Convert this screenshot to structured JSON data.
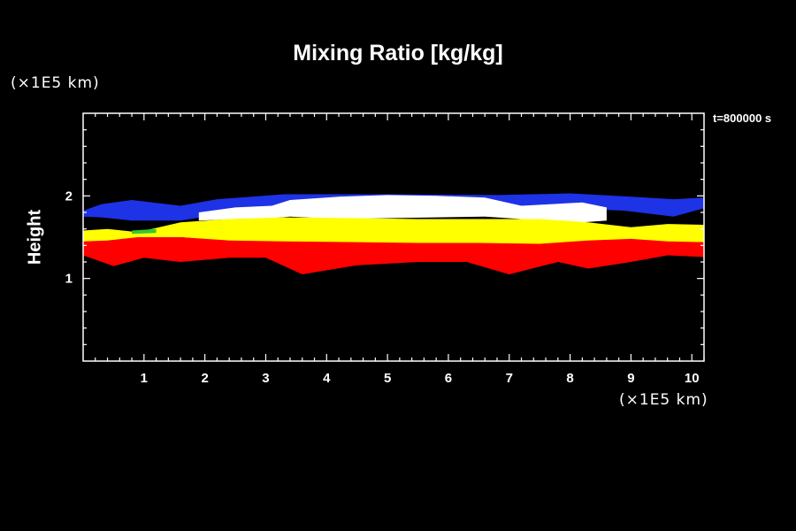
{
  "chart_data": {
    "type": "heatmap",
    "title": "Mixing Ratio [kg/kg]",
    "ylabel": "Height",
    "xlabel": "",
    "x_unit": "(×1E5 km)",
    "y_unit": "(×1E5 km)",
    "time_label": "t=800000 s",
    "xlim": [
      0,
      10.2
    ],
    "ylim": [
      0,
      3
    ],
    "xticks": [
      "1",
      "2",
      "3",
      "4",
      "5",
      "6",
      "7",
      "8",
      "9",
      "10"
    ],
    "yticks": [
      "1",
      "2"
    ],
    "colors": {
      "background": "#000000",
      "frame": "#ffffff",
      "blue": "#1e32e6",
      "white": "#ffffff",
      "yellow": "#ffff00",
      "red": "#ff0000",
      "green": "#32c832"
    },
    "regions": [
      {
        "name": "blue-layer",
        "color": "#1e32e6",
        "top": [
          [
            0.0,
            1.82
          ],
          [
            0.3,
            1.9
          ],
          [
            0.8,
            1.95
          ],
          [
            1.6,
            1.88
          ],
          [
            2.2,
            1.96
          ],
          [
            3.3,
            2.02
          ],
          [
            5,
            2.02
          ],
          [
            6.8,
            2.01
          ],
          [
            8,
            2.03
          ],
          [
            9,
            1.99
          ],
          [
            9.7,
            1.96
          ],
          [
            10.2,
            1.98
          ]
        ],
        "bottom": [
          [
            10.2,
            1.85
          ],
          [
            9.7,
            1.75
          ],
          [
            8.9,
            1.82
          ],
          [
            8,
            1.85
          ],
          [
            6.8,
            1.85
          ],
          [
            5,
            1.8
          ],
          [
            3.3,
            1.78
          ],
          [
            2.2,
            1.77
          ],
          [
            1.6,
            1.7
          ],
          [
            0.8,
            1.7
          ],
          [
            0.3,
            1.74
          ],
          [
            0.0,
            1.75
          ]
        ]
      },
      {
        "name": "white-layer",
        "color": "#ffffff",
        "top": [
          [
            1.9,
            1.8
          ],
          [
            2.5,
            1.86
          ],
          [
            3.1,
            1.88
          ],
          [
            3.4,
            1.95
          ],
          [
            4.2,
            1.99
          ],
          [
            5,
            2.01
          ],
          [
            5.8,
            2.0
          ],
          [
            6.6,
            1.98
          ],
          [
            7.2,
            1.88
          ],
          [
            8.2,
            1.92
          ],
          [
            8.6,
            1.86
          ]
        ],
        "bottom": [
          [
            8.6,
            1.7
          ],
          [
            8.2,
            1.68
          ],
          [
            7.2,
            1.72
          ],
          [
            6.6,
            1.75
          ],
          [
            5.8,
            1.74
          ],
          [
            5,
            1.73
          ],
          [
            4.2,
            1.72
          ],
          [
            3.4,
            1.75
          ],
          [
            3.1,
            1.73
          ],
          [
            2.5,
            1.72
          ],
          [
            1.9,
            1.7
          ]
        ]
      },
      {
        "name": "yellow-layer",
        "color": "#ffff00",
        "top": [
          [
            0,
            1.58
          ],
          [
            0.4,
            1.6
          ],
          [
            0.9,
            1.56
          ],
          [
            1.6,
            1.68
          ],
          [
            2.4,
            1.72
          ],
          [
            3.3,
            1.74
          ],
          [
            4.5,
            1.73
          ],
          [
            5.5,
            1.72
          ],
          [
            6.5,
            1.72
          ],
          [
            7.5,
            1.72
          ],
          [
            8.3,
            1.68
          ],
          [
            9,
            1.62
          ],
          [
            9.6,
            1.66
          ],
          [
            10.2,
            1.65
          ]
        ],
        "bottom": [
          [
            10.2,
            1.44
          ],
          [
            9.6,
            1.42
          ],
          [
            9,
            1.46
          ],
          [
            8.3,
            1.44
          ],
          [
            7.5,
            1.4
          ],
          [
            6.5,
            1.42
          ],
          [
            5.5,
            1.42
          ],
          [
            4.5,
            1.43
          ],
          [
            3.3,
            1.44
          ],
          [
            2.4,
            1.45
          ],
          [
            1.6,
            1.5
          ],
          [
            0.9,
            1.48
          ],
          [
            0.4,
            1.45
          ],
          [
            0,
            1.42
          ]
        ]
      },
      {
        "name": "red-layer",
        "color": "#ff0000",
        "top": [
          [
            0,
            1.45
          ],
          [
            0.4,
            1.46
          ],
          [
            0.9,
            1.5
          ],
          [
            1.6,
            1.5
          ],
          [
            2.4,
            1.46
          ],
          [
            3.3,
            1.45
          ],
          [
            4.5,
            1.44
          ],
          [
            5.5,
            1.43
          ],
          [
            6.5,
            1.43
          ],
          [
            7.5,
            1.42
          ],
          [
            8.3,
            1.46
          ],
          [
            9,
            1.48
          ],
          [
            9.6,
            1.45
          ],
          [
            10.2,
            1.44
          ]
        ],
        "bottom": [
          [
            10.2,
            1.26
          ],
          [
            9.6,
            1.28
          ],
          [
            9,
            1.2
          ],
          [
            8.3,
            1.12
          ],
          [
            7.8,
            1.2
          ],
          [
            7,
            1.05
          ],
          [
            6.3,
            1.2
          ],
          [
            5.5,
            1.2
          ],
          [
            4.5,
            1.16
          ],
          [
            3.6,
            1.05
          ],
          [
            3.0,
            1.25
          ],
          [
            2.4,
            1.25
          ],
          [
            1.6,
            1.2
          ],
          [
            1.0,
            1.25
          ],
          [
            0.5,
            1.15
          ],
          [
            0,
            1.28
          ]
        ]
      },
      {
        "name": "green-patch",
        "color": "#32c832",
        "top": [
          [
            0.8,
            1.58
          ],
          [
            1.2,
            1.6
          ]
        ],
        "bottom": [
          [
            1.2,
            1.55
          ],
          [
            0.8,
            1.54
          ]
        ]
      }
    ]
  }
}
